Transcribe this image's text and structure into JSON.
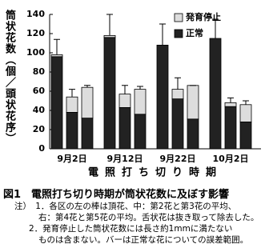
{
  "chart_data": {
    "type": "stacked-bar",
    "y_label": "筒状花数（個／頭状花序）",
    "x_label": "電照打ち切り時期",
    "categories": [
      null,
      "9月2日",
      null,
      null,
      "9月12日",
      null,
      null,
      "9月22日",
      null,
      null,
      "10月2日",
      null
    ],
    "series": [
      {
        "name": "正常",
        "color": "#222222",
        "values": [
          96,
          38,
          32,
          116,
          43,
          36,
          108,
          52,
          31,
          115,
          44,
          28
        ],
        "errors": [
          16,
          8,
          2,
          22,
          9,
          3,
          22,
          12,
          0,
          20,
          5,
          4
        ]
      },
      {
        "name": "発育停止",
        "color": "#dddddd",
        "values": [
          2,
          16,
          32,
          2,
          14,
          26,
          0,
          10,
          35,
          0,
          4,
          18
        ]
      }
    ],
    "ylim": [
      0,
      140
    ],
    "yticks": [
      0,
      20,
      40,
      60,
      80,
      100,
      120,
      140
    ],
    "title": "図1　電照打ち切り時期が筒状花数に及ぼす影響",
    "notes": [
      "注）　1．各区の左の棒は頂花、中：第2花と第3花の平均、",
      "右：第4花と第5花の平均。舌状花は抜き取って除去した。",
      "2．発育停止した筒状花数には長さ約1mmに満たない",
      "ものは含まない。バーは正常な花についての誤差範囲。"
    ]
  }
}
